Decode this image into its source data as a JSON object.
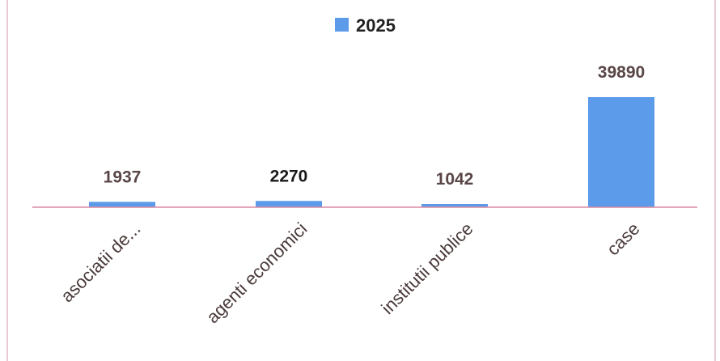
{
  "chart_data": {
    "type": "bar",
    "categories": [
      "asociatii de...",
      "agenti economici",
      "institutii publice",
      "case"
    ],
    "series": [
      {
        "name": "2025",
        "values": [
          1937,
          2270,
          1042,
          39890
        ]
      }
    ],
    "data_labels": [
      "1937",
      "2270",
      "1042",
      "39890"
    ],
    "legend": {
      "position": "top-center",
      "label": "2025"
    },
    "title": "",
    "xlabel": "",
    "ylabel": "",
    "y_axis_shown": false,
    "grid": false,
    "colors": {
      "bar": "#5b9bea",
      "bar_dark": "#3f7fd6",
      "baseline": "#d88aa0",
      "frame": "#e2b8c4",
      "data_label": "#5a4646",
      "data_label_emphasis": "#1a1a1a"
    }
  }
}
